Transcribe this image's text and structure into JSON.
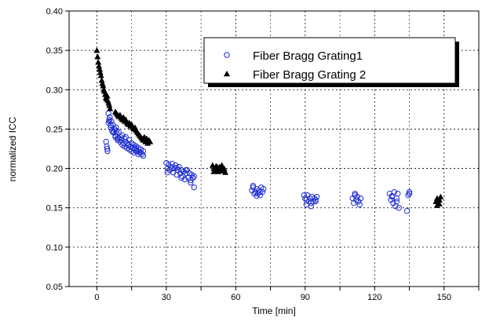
{
  "chart_data": {
    "type": "scatter",
    "title": "",
    "xlabel": "Time [min]",
    "ylabel": "normalized ICC",
    "xlim": [
      -12,
      165
    ],
    "ylim": [
      0.05,
      0.4
    ],
    "xticks": [
      0,
      30,
      60,
      90,
      120,
      150
    ],
    "yticks": [
      0.05,
      0.1,
      0.15,
      0.2,
      0.25,
      0.3,
      0.35,
      0.4
    ],
    "ytick_labels": [
      "0.05",
      "0.10",
      "0.15",
      "0.20",
      "0.25",
      "0.30",
      "0.35",
      "0.40"
    ],
    "grid": true,
    "legend_position": "top-right",
    "series": [
      {
        "name": "Fiber Bragg Grating1",
        "marker": "open-circle",
        "color": "#1f2fd0",
        "x": [
          4.0,
          4.3,
          4.6,
          5.0,
          5.3,
          5.6,
          6.0,
          6.3,
          6.6,
          7.0,
          7.3,
          7.6,
          8.0,
          8.3,
          8.6,
          9.0,
          9.4,
          9.8,
          10.2,
          10.6,
          11.0,
          11.5,
          12.0,
          12.5,
          13.0,
          13.5,
          14.0,
          14.5,
          15.0,
          15.5,
          16.0,
          16.5,
          17.0,
          17.5,
          18.0,
          18.5,
          19.0,
          19.5,
          20.0,
          5.0,
          6.0,
          7.0,
          8.0,
          9.0,
          10.0,
          11.0,
          12.0,
          13.0,
          14.0,
          15.0,
          16.0,
          17.0,
          18.0,
          19.0,
          20.0,
          4.5,
          5.5,
          8.5,
          12.5,
          16.5,
          30.0,
          30.5,
          31.0,
          31.5,
          32.0,
          32.5,
          33.0,
          33.5,
          34.0,
          34.5,
          35.0,
          35.5,
          36.0,
          36.5,
          37.0,
          37.5,
          38.0,
          38.5,
          39.0,
          39.5,
          40.0,
          40.5,
          41.0,
          41.5,
          42.0,
          30.5,
          32.5,
          34.5,
          36.5,
          38.5,
          40.5,
          42.0,
          67.0,
          67.5,
          68.0,
          68.5,
          69.0,
          69.5,
          70.0,
          70.5,
          71.0,
          71.5,
          72.0,
          67.5,
          69.0,
          70.5,
          89.5,
          90.0,
          90.5,
          91.0,
          91.5,
          92.0,
          92.5,
          93.0,
          93.5,
          94.0,
          94.5,
          95.0,
          90.5,
          92.5,
          94.5,
          110.5,
          111.0,
          111.5,
          112.0,
          112.5,
          113.0,
          113.5,
          114.0,
          111.5,
          113.0,
          126.5,
          127.0,
          127.5,
          128.0,
          128.5,
          129.0,
          129.5,
          130.0,
          130.5,
          127.5,
          129.5,
          134.0,
          134.5,
          135.0,
          135.0
        ],
        "y": [
          0.234,
          0.228,
          0.222,
          0.27,
          0.262,
          0.265,
          0.255,
          0.26,
          0.248,
          0.255,
          0.246,
          0.25,
          0.24,
          0.252,
          0.244,
          0.236,
          0.246,
          0.238,
          0.24,
          0.236,
          0.242,
          0.232,
          0.238,
          0.234,
          0.232,
          0.23,
          0.236,
          0.228,
          0.232,
          0.226,
          0.23,
          0.224,
          0.228,
          0.222,
          0.226,
          0.22,
          0.224,
          0.218,
          0.222,
          0.258,
          0.252,
          0.246,
          0.242,
          0.238,
          0.234,
          0.23,
          0.228,
          0.226,
          0.224,
          0.222,
          0.22,
          0.222,
          0.218,
          0.22,
          0.216,
          0.225,
          0.26,
          0.248,
          0.24,
          0.226,
          0.207,
          0.2,
          0.205,
          0.198,
          0.202,
          0.206,
          0.195,
          0.2,
          0.204,
          0.192,
          0.198,
          0.202,
          0.194,
          0.198,
          0.19,
          0.196,
          0.186,
          0.194,
          0.198,
          0.188,
          0.194,
          0.185,
          0.192,
          0.188,
          0.19,
          0.195,
          0.2,
          0.201,
          0.188,
          0.198,
          0.182,
          0.176,
          0.172,
          0.176,
          0.168,
          0.17,
          0.174,
          0.168,
          0.172,
          0.166,
          0.176,
          0.17,
          0.174,
          0.178,
          0.165,
          0.17,
          0.166,
          0.162,
          0.16,
          0.166,
          0.158,
          0.162,
          0.156,
          0.164,
          0.158,
          0.162,
          0.16,
          0.164,
          0.154,
          0.152,
          0.158,
          0.162,
          0.156,
          0.166,
          0.16,
          0.164,
          0.158,
          0.154,
          0.162,
          0.168,
          0.158,
          0.168,
          0.16,
          0.165,
          0.156,
          0.17,
          0.152,
          0.162,
          0.168,
          0.15,
          0.164,
          0.158,
          0.146,
          0.166,
          0.17,
          0.168
        ]
      },
      {
        "name": "Fiber Bragg Grating 2",
        "marker": "filled-triangle",
        "color": "#000000",
        "x": [
          0.0,
          0.3,
          0.6,
          0.9,
          1.2,
          1.5,
          1.8,
          2.1,
          2.4,
          2.7,
          3.0,
          3.3,
          3.6,
          3.9,
          4.2,
          4.5,
          4.8,
          5.1,
          5.4,
          5.7,
          8.0,
          8.5,
          9.0,
          9.5,
          10.0,
          10.5,
          11.0,
          11.5,
          12.0,
          12.5,
          13.0,
          13.5,
          14.0,
          14.5,
          15.0,
          15.5,
          16.0,
          16.5,
          17.0,
          17.5,
          18.0,
          18.5,
          19.0,
          19.5,
          20.0,
          20.5,
          21.0,
          21.5,
          22.0,
          22.5,
          23.0,
          50.0,
          50.5,
          51.0,
          51.5,
          52.0,
          52.5,
          53.0,
          53.5,
          54.0,
          54.5,
          55.0,
          55.5,
          50.5,
          52.0,
          53.5,
          55.0,
          146.5,
          147.0,
          147.5,
          148.0,
          148.5,
          147.0,
          148.0
        ],
        "y": [
          0.35,
          0.342,
          0.335,
          0.33,
          0.326,
          0.322,
          0.318,
          0.312,
          0.308,
          0.305,
          0.3,
          0.298,
          0.294,
          0.29,
          0.288,
          0.292,
          0.286,
          0.283,
          0.28,
          0.276,
          0.272,
          0.27,
          0.268,
          0.266,
          0.268,
          0.264,
          0.262,
          0.265,
          0.26,
          0.262,
          0.258,
          0.256,
          0.258,
          0.254,
          0.256,
          0.252,
          0.25,
          0.252,
          0.248,
          0.246,
          0.244,
          0.242,
          0.24,
          0.238,
          0.236,
          0.24,
          0.234,
          0.238,
          0.232,
          0.236,
          0.234,
          0.204,
          0.2,
          0.198,
          0.203,
          0.2,
          0.196,
          0.202,
          0.198,
          0.204,
          0.2,
          0.198,
          0.195,
          0.196,
          0.202,
          0.197,
          0.2,
          0.158,
          0.162,
          0.156,
          0.16,
          0.164,
          0.153,
          0.155
        ]
      }
    ]
  }
}
